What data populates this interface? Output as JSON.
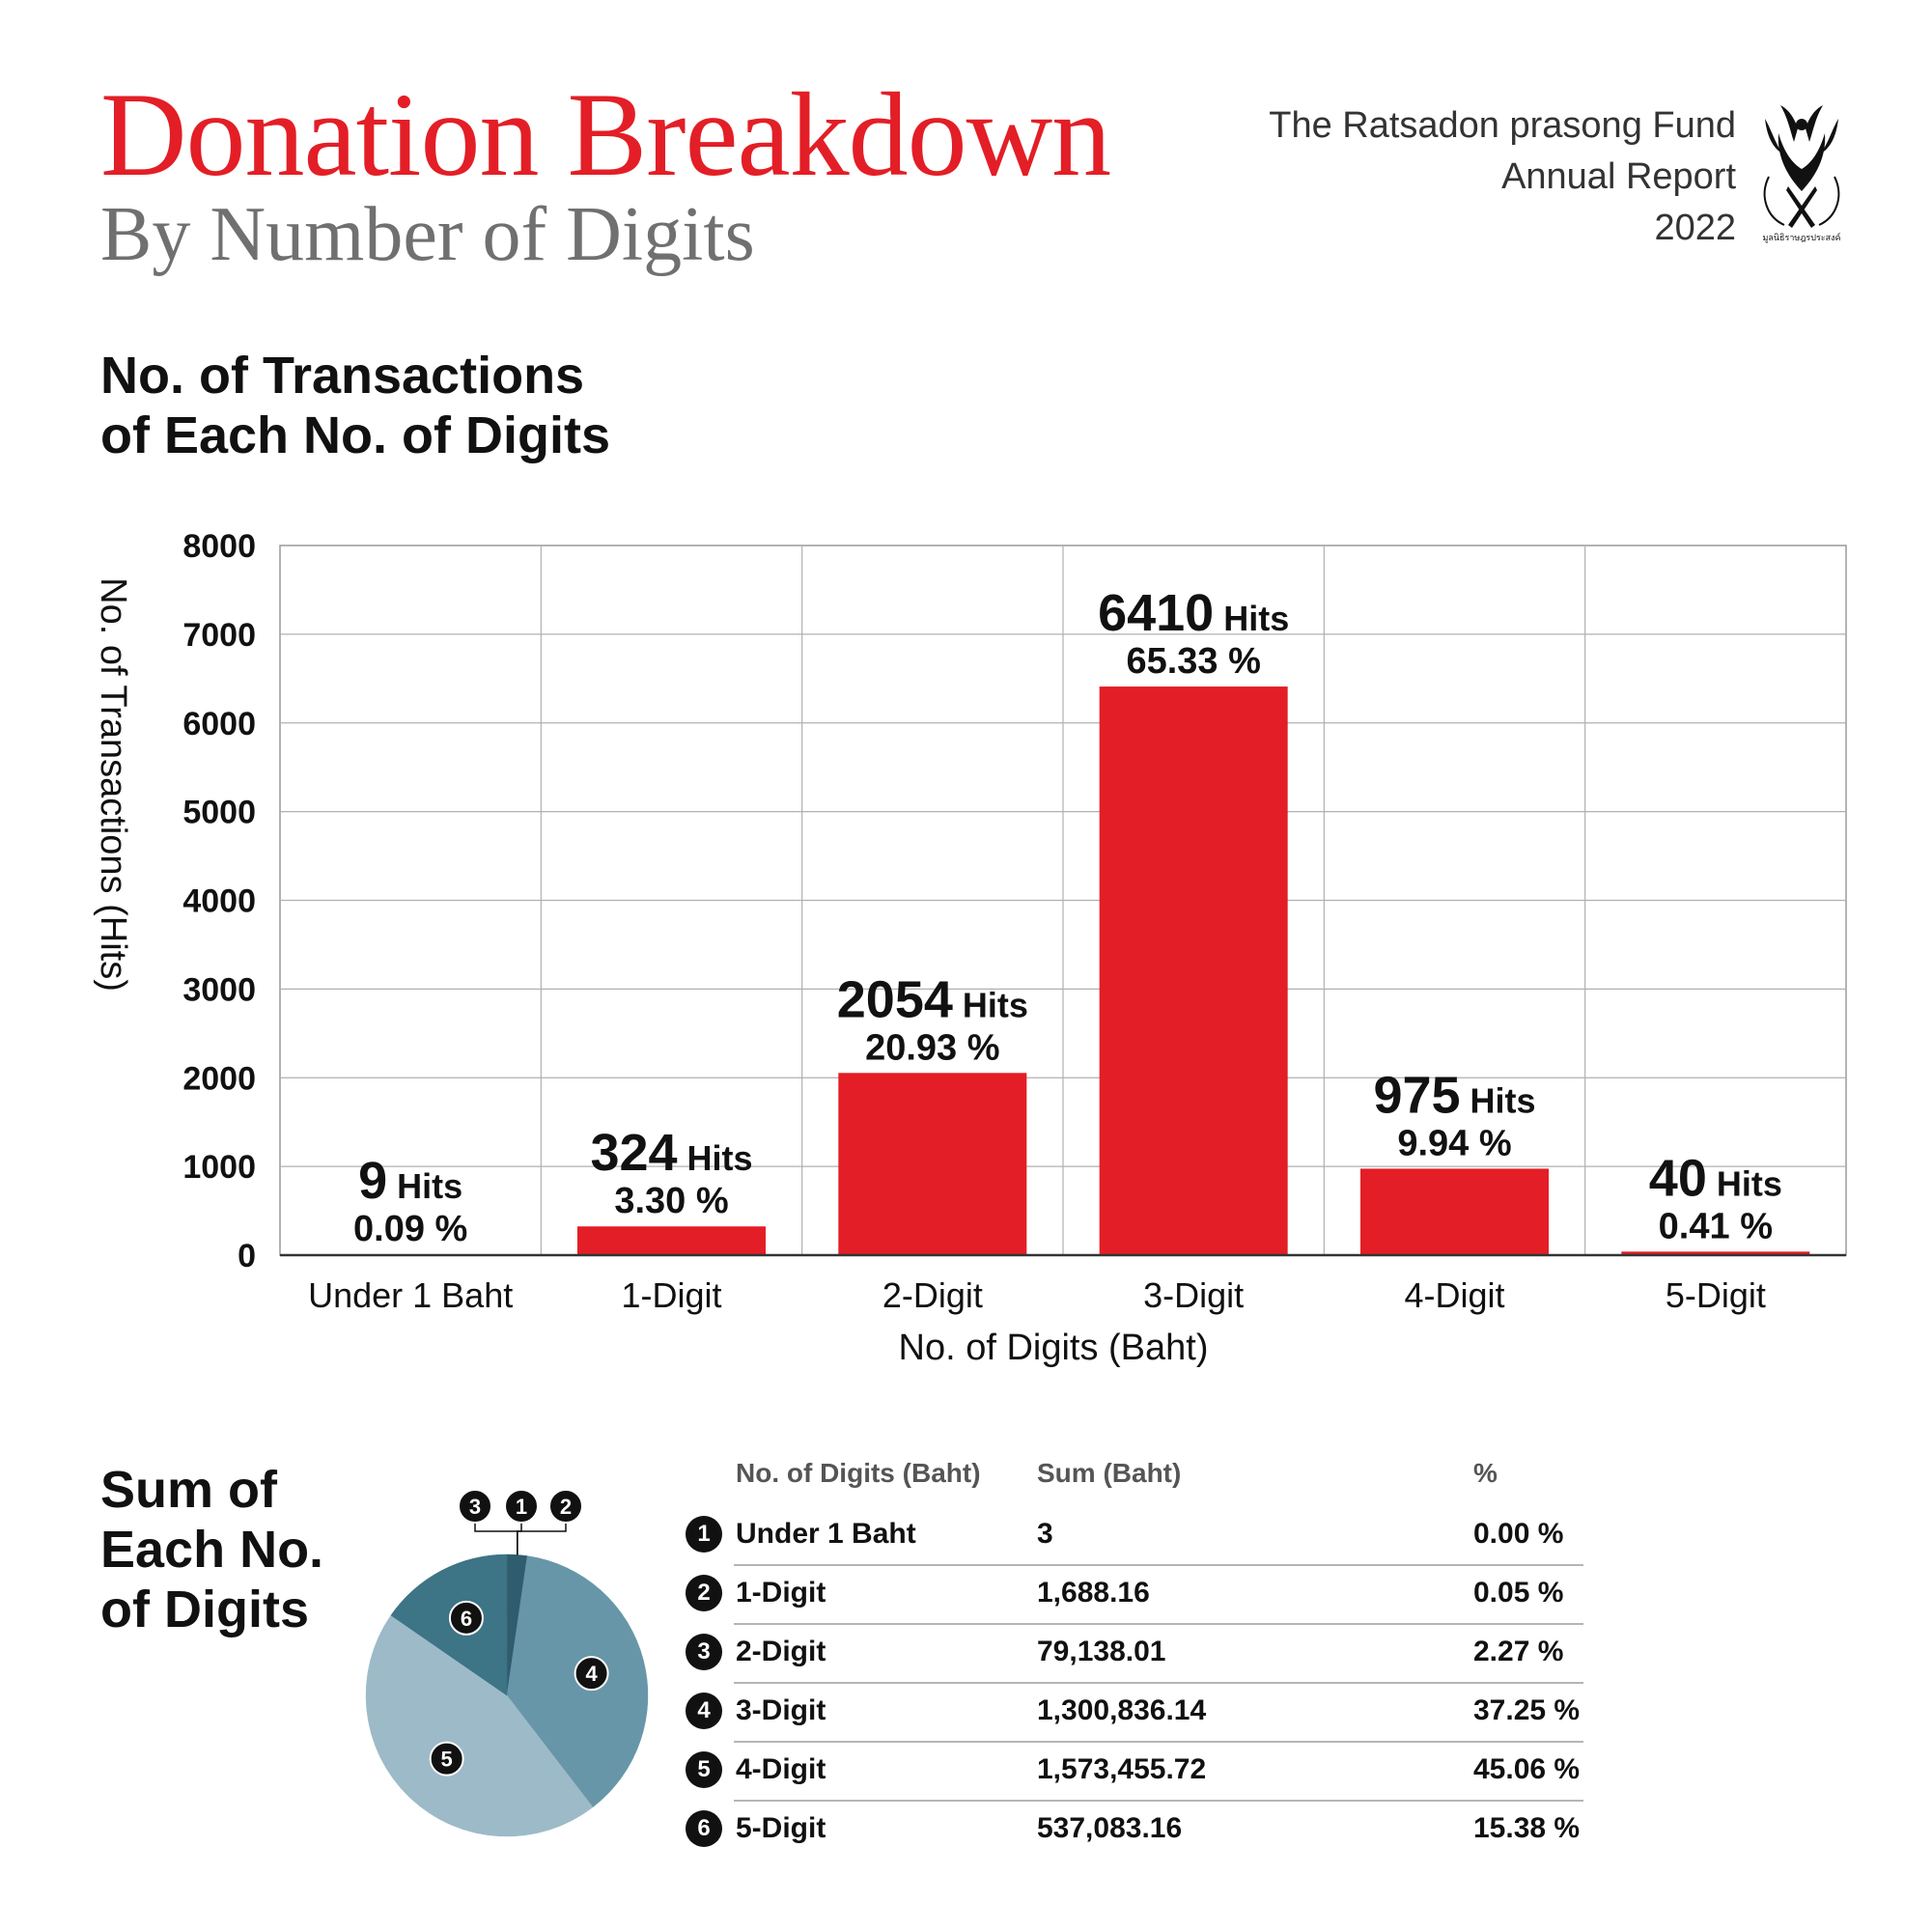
{
  "header": {
    "title": "Donation Breakdown",
    "subtitle": "By Number of Digits",
    "org_line1": "The Ratsadon prasong Fund",
    "org_line2": "Annual Report",
    "org_line3": "2022",
    "logo_text": "มูลนิธิราษฎรประสงค์"
  },
  "bar_section": {
    "heading_line1": "No. of Transactions",
    "heading_line2": "of Each No. of Digits"
  },
  "pie_section": {
    "heading_line1": "Sum of",
    "heading_line2": "Each No.",
    "heading_line3": "of Digits"
  },
  "colors": {
    "accent": "#e31e26",
    "subtitle_gray": "#707070",
    "pie_slices": [
      "#2f5d6e",
      "#2f5d6e",
      "#2f5d6e",
      "#6796a8",
      "#9dbac8",
      "#3d7486"
    ]
  },
  "table": {
    "headers": [
      "No. of Digits (Baht)",
      "Sum (Baht)",
      "%"
    ],
    "rows": [
      {
        "num": "1",
        "digits": "Under 1 Baht",
        "sum": "3",
        "pct": "0.00 %"
      },
      {
        "num": "2",
        "digits": "1-Digit",
        "sum": "1,688.16",
        "pct": "0.05 %"
      },
      {
        "num": "3",
        "digits": "2-Digit",
        "sum": "79,138.01",
        "pct": "2.27 %"
      },
      {
        "num": "4",
        "digits": "3-Digit",
        "sum": "1,300,836.14",
        "pct": "37.25 %"
      },
      {
        "num": "5",
        "digits": "4-Digit",
        "sum": "1,573,455.72",
        "pct": "45.06 %"
      },
      {
        "num": "6",
        "digits": "5-Digit",
        "sum": "537,083.16",
        "pct": "15.38 %"
      }
    ]
  },
  "chart_data": [
    {
      "type": "bar",
      "title": "No. of Transactions of Each No. of Digits",
      "xlabel": "No. of Digits (Baht)",
      "ylabel": "No. of Transactions (Hits)",
      "categories": [
        "Under 1 Baht",
        "1-Digit",
        "2-Digit",
        "3-Digit",
        "4-Digit",
        "5-Digit"
      ],
      "values": [
        9,
        324,
        2054,
        6410,
        975,
        40
      ],
      "value_labels": [
        "9",
        "324",
        "2054",
        "6410",
        "975",
        "40"
      ],
      "value_unit": "Hits",
      "percent_labels": [
        "0.09 %",
        "3.30 %",
        "20.93 %",
        "65.33 %",
        "9.94 %",
        "0.41 %"
      ],
      "ylim": [
        0,
        8000
      ],
      "yticks": [
        0,
        1000,
        2000,
        3000,
        4000,
        5000,
        6000,
        7000,
        8000
      ],
      "grid": true,
      "color": "#e31e26"
    },
    {
      "type": "pie",
      "title": "Sum of Each No. of Digits",
      "labels": [
        "1",
        "2",
        "3",
        "4",
        "5",
        "6"
      ],
      "categories": [
        "Under 1 Baht",
        "1-Digit",
        "2-Digit",
        "3-Digit",
        "4-Digit",
        "5-Digit"
      ],
      "values": [
        3,
        1688.16,
        79138.01,
        1300836.14,
        1573455.72,
        537083.16
      ],
      "percent": [
        0.0,
        0.05,
        2.27,
        37.25,
        45.06,
        15.38
      ]
    }
  ]
}
